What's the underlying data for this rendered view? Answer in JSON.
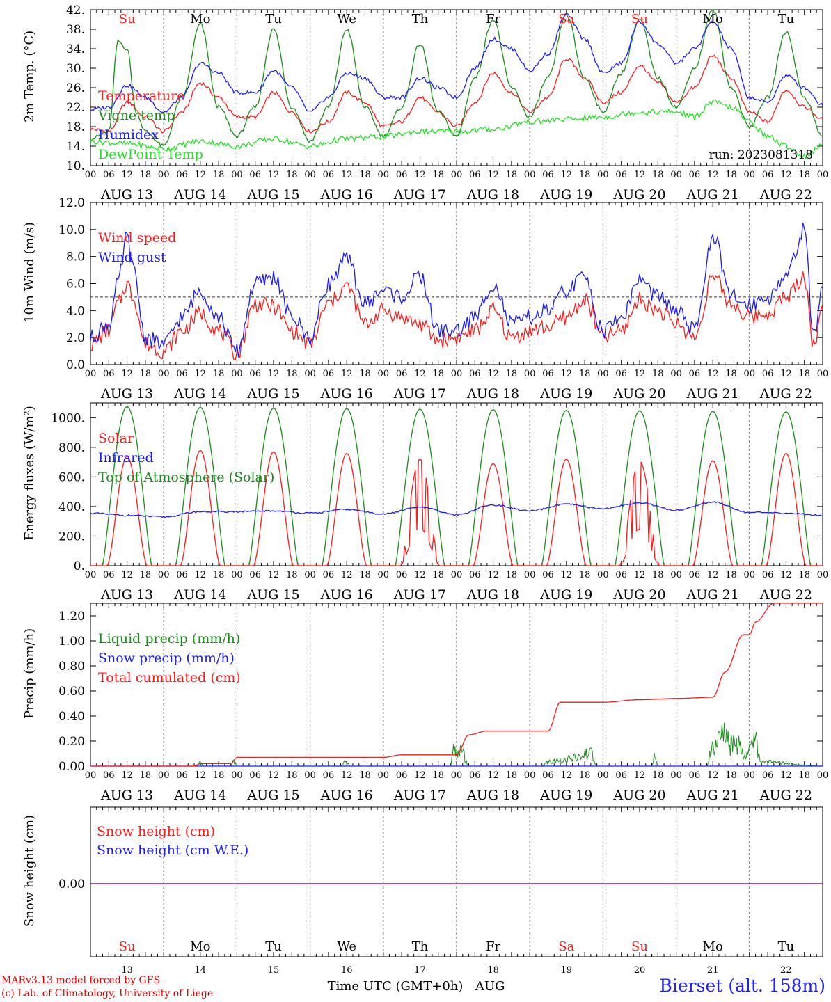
{
  "colors": {
    "red": "#ff1a1a",
    "green": "#1a8c1a",
    "blue": "#1a1aff",
    "light_green": "#22e022",
    "purple": "#7a1f9a",
    "axis": "#000000"
  },
  "credits": {
    "line1": "MARv3.13 model forced by GFS",
    "line2": "(c) Lab. of Climatology, University of Liege"
  },
  "station": "Bierset (alt. 158m)",
  "chart_data": {
    "time_axis": {
      "hour_ticks": [
        "00",
        "06",
        "12",
        "18"
      ],
      "end_tick": "00",
      "dates": [
        "AUG 13",
        "AUG 14",
        "AUG 15",
        "AUG 16",
        "AUG 17",
        "AUG 18",
        "AUG 19",
        "AUG 20",
        "AUG 21",
        "AUG 22"
      ],
      "weekdays": [
        "Su",
        "Mo",
        "Tu",
        "We",
        "Th",
        "Fr",
        "Sa",
        "Su",
        "Mo",
        "Tu"
      ],
      "weekday_colors": [
        "#ff1a1a",
        "#000000",
        "#000000",
        "#000000",
        "#000000",
        "#000000",
        "#ff1a1a",
        "#ff1a1a",
        "#000000",
        "#000000"
      ],
      "day_numbers": [
        "13",
        "14",
        "15",
        "16",
        "17",
        "18",
        "19",
        "20",
        "21",
        "22"
      ],
      "xlabel": "Time UTC (GMT+0h)",
      "month": "AUG"
    },
    "panels": [
      {
        "id": "temperature",
        "type": "line",
        "ylabel": "2m Temp. (°C)",
        "ylim": [
          10,
          42
        ],
        "yticks": [
          "10.",
          "14.",
          "18.",
          "22.",
          "26.",
          "30.",
          "34.",
          "38.",
          "42."
        ],
        "annotation": "run: 2023081318",
        "series": [
          {
            "name": "Temperature",
            "color": "red",
            "x": [
              0,
              6,
              12,
              18,
              24,
              30,
              36,
              42,
              48,
              54,
              60,
              66,
              72,
              78,
              84,
              90,
              96,
              102,
              108,
              114,
              120,
              126,
              132,
              138,
              144,
              150,
              156,
              162,
              168,
              174,
              180,
              186,
              192,
              198,
              204,
              210,
              216,
              222,
              228,
              234,
              240
            ],
            "y": [
              17.5,
              17,
              23,
              20,
              17,
              21,
              27,
              24,
              20,
              20,
              25,
              21,
              17,
              19,
              25,
              23,
              18,
              19,
              24,
              21,
              18,
              23,
              29,
              25,
              21,
              24,
              32,
              28,
              23,
              25,
              30.5,
              27,
              23,
              26,
              32.5,
              28,
              21,
              19,
              25.5,
              22,
              19.5
            ]
          },
          {
            "name": "Vigne temp",
            "color": "green",
            "x": [
              0,
              6,
              9,
              12,
              15,
              18,
              24,
              30,
              36,
              42,
              48,
              54,
              60,
              66,
              72,
              78,
              84,
              90,
              96,
              102,
              108,
              114,
              120,
              126,
              132,
              138,
              144,
              150,
              156,
              162,
              168,
              174,
              180,
              186,
              192,
              198,
              204,
              210,
              216,
              222,
              228,
              234,
              240
            ],
            "y": [
              15.5,
              17,
              35.5,
              34,
              21,
              17,
              14,
              24,
              39,
              22,
              16,
              22,
              38,
              22,
              15,
              22,
              38,
              22,
              16,
              22,
              35,
              21,
              16,
              28,
              40,
              26,
              20,
              28,
              41,
              28,
              21,
              29,
              40,
              28,
              22,
              30,
              42,
              26,
              18,
              24,
              37.5,
              24,
              16
            ]
          },
          {
            "name": "Humidex",
            "color": "blue",
            "x": [
              0,
              6,
              12,
              18,
              24,
              30,
              36,
              42,
              48,
              54,
              60,
              66,
              72,
              78,
              84,
              90,
              96,
              102,
              108,
              114,
              120,
              126,
              132,
              138,
              144,
              150,
              156,
              162,
              168,
              174,
              180,
              186,
              192,
              198,
              204,
              210,
              216,
              222,
              228,
              234,
              240
            ],
            "y": [
              21.5,
              22,
              26.5,
              24,
              21,
              24,
              31,
              29,
              25,
              25,
              29.5,
              26,
              21,
              24,
              29,
              28,
              24,
              24,
              28,
              26,
              24,
              30,
              36,
              34,
              29.5,
              33,
              41,
              36,
              29,
              31,
              39.5,
              35,
              31,
              34,
              39.5,
              34,
              24,
              23,
              28.5,
              26,
              22.5
            ]
          },
          {
            "name": "DewPoint Temp",
            "color": "light_green",
            "x": [
              0,
              12,
              24,
              36,
              48,
              60,
              72,
              84,
              96,
              108,
              120,
              132,
              144,
              156,
              168,
              180,
              192,
              198,
              204,
              210,
              216,
              222,
              228,
              234,
              240
            ],
            "y": [
              15,
              14.5,
              13.5,
              15,
              14,
              15.5,
              14,
              15.5,
              16,
              17,
              17,
              17.5,
              19,
              19.5,
              20,
              21,
              21,
              20,
              23,
              22,
              19,
              16,
              14,
              12,
              14
            ]
          }
        ]
      },
      {
        "id": "wind",
        "type": "line",
        "ylabel": "10m Wind (m/s)",
        "ylim": [
          0,
          12
        ],
        "yticks": [
          "0.0",
          "2.0",
          "4.0",
          "6.0",
          "8.0",
          "10.0",
          "12.0"
        ],
        "reference_line": 5,
        "series": [
          {
            "name": "Wind speed",
            "color": "red",
            "x": [
              0,
              6,
              9,
              12,
              14,
              18,
              24,
              30,
              36,
              42,
              48,
              54,
              60,
              66,
              72,
              78,
              84,
              90,
              96,
              102,
              108,
              114,
              120,
              126,
              132,
              138,
              144,
              150,
              156,
              162,
              168,
              174,
              180,
              186,
              192,
              198,
              204,
              210,
              216,
              222,
              228,
              234,
              237,
              240
            ],
            "y": [
              1.5,
              2.5,
              4.5,
              6,
              5,
              1.5,
              1,
              2.5,
              3.8,
              2.5,
              0.8,
              4.5,
              4.3,
              2.5,
              1.5,
              4.5,
              5.8,
              3,
              4,
              3.5,
              3,
              1.8,
              2,
              2.5,
              4,
              2,
              2.5,
              2.8,
              3.5,
              4.8,
              2,
              2.5,
              4.8,
              4,
              3,
              2,
              6.5,
              4.5,
              3.5,
              3.8,
              5,
              6.5,
              1.5,
              4
            ]
          },
          {
            "name": "Wind gust",
            "color": "blue",
            "x": [
              0,
              6,
              9,
              12,
              14,
              18,
              24,
              30,
              36,
              42,
              48,
              54,
              60,
              66,
              72,
              78,
              84,
              90,
              96,
              102,
              108,
              114,
              120,
              126,
              132,
              138,
              144,
              150,
              156,
              162,
              168,
              174,
              180,
              186,
              192,
              198,
              204,
              210,
              216,
              222,
              228,
              234,
              237,
              240
            ],
            "y": [
              2,
              3,
              6,
              9.5,
              7,
              2,
              1.5,
              3.5,
              5.5,
              3.5,
              1,
              6,
              6.5,
              3.5,
              2,
              6,
              7.8,
              4.5,
              5.5,
              5,
              6.5,
              2.5,
              2.5,
              3.5,
              6,
              3,
              3.5,
              4,
              5.5,
              6.5,
              2.5,
              3.5,
              6.3,
              5,
              4,
              2.5,
              9.5,
              5,
              4.5,
              5,
              6.5,
              10,
              2,
              6
            ]
          }
        ]
      },
      {
        "id": "energy",
        "type": "line",
        "ylabel": "Energy fluxes (W/m²)",
        "ylim": [
          0,
          1100
        ],
        "yticks": [
          "0.",
          "200.",
          "400.",
          "600.",
          "800.",
          "1000."
        ],
        "series": [
          {
            "name": "Solar",
            "color": "red",
            "daily_peaks": [
              740,
              780,
              770,
              760,
              720,
              690,
              720,
              710,
              710,
              760
            ]
          },
          {
            "name": "Infrared",
            "color": "blue",
            "x": [
              0,
              12,
              24,
              36,
              48,
              60,
              72,
              84,
              96,
              108,
              120,
              132,
              144,
              156,
              168,
              180,
              192,
              204,
              216,
              228,
              240
            ],
            "y": [
              355,
              340,
              330,
              365,
              365,
              370,
              355,
              380,
              350,
              395,
              345,
              410,
              370,
              415,
              385,
              425,
              375,
              430,
              360,
              355,
              340
            ]
          },
          {
            "name": "Top of Atmosphere (Solar)",
            "color": "green",
            "daily_peaks": [
              1075,
              1070,
              1065,
              1062,
              1058,
              1055,
              1050,
              1047,
              1043,
              1040
            ]
          }
        ]
      },
      {
        "id": "precip",
        "type": "line",
        "ylabel": "Precip (mm/h)",
        "ylim": [
          0,
          1.3
        ],
        "yticks": [
          "0.00",
          "0.20",
          "0.40",
          "0.60",
          "0.80",
          "1.00",
          "1.20"
        ],
        "series": [
          {
            "name": "Liquid precip (mm/h)",
            "color": "green",
            "x": [
              0,
              35,
              36,
              37,
              38,
              46,
              47,
              48,
              82,
              84,
              85,
              118,
              119,
              120,
              122,
              123,
              124,
              148,
              150,
              160,
              162,
              164,
              166,
              184,
              185,
              186,
              202,
              204,
              206,
              208,
              210,
              212,
              214,
              218,
              220,
              240
            ],
            "y": [
              0,
              0,
              0.05,
              0,
              0,
              0,
              0.06,
              0,
              0,
              0.07,
              0,
              0,
              0.25,
              0.15,
              0.2,
              0.05,
              0,
              0,
              0.05,
              0.1,
              0.15,
              0.15,
              0,
              0,
              0.14,
              0,
              0,
              0.25,
              0.35,
              0.4,
              0.25,
              0.3,
              0.15,
              0.3,
              0.05,
              0
            ]
          },
          {
            "name": "Snow precip (mm/h)",
            "color": "blue",
            "x": [
              0,
              240
            ],
            "y": [
              0,
              0
            ]
          },
          {
            "name": "Total cumulated (cm)",
            "color": "red",
            "x": [
              0,
              34,
              36,
              46,
              48,
              96,
              102,
              120,
              124,
              130,
              150,
              154,
              168,
              180,
              192,
              204,
              208,
              214,
              216,
              218,
              224,
              240
            ],
            "y": [
              0,
              0,
              0.02,
              0.02,
              0.07,
              0.07,
              0.09,
              0.09,
              0.25,
              0.28,
              0.28,
              0.51,
              0.51,
              0.53,
              0.54,
              0.55,
              0.75,
              1.05,
              1.05,
              1.15,
              1.3,
              1.3
            ]
          }
        ]
      },
      {
        "id": "snow",
        "type": "line",
        "ylabel": "Snow height (cm)",
        "yticks": [
          "0.00"
        ],
        "series": [
          {
            "name": "Snow height (cm)",
            "color": "red",
            "x": [
              0,
              240
            ],
            "y": [
              0,
              0
            ]
          },
          {
            "name": "Snow height (cm W.E.)",
            "color": "blue",
            "x": [
              0,
              240
            ],
            "y": [
              0,
              0
            ]
          }
        ]
      }
    ]
  }
}
